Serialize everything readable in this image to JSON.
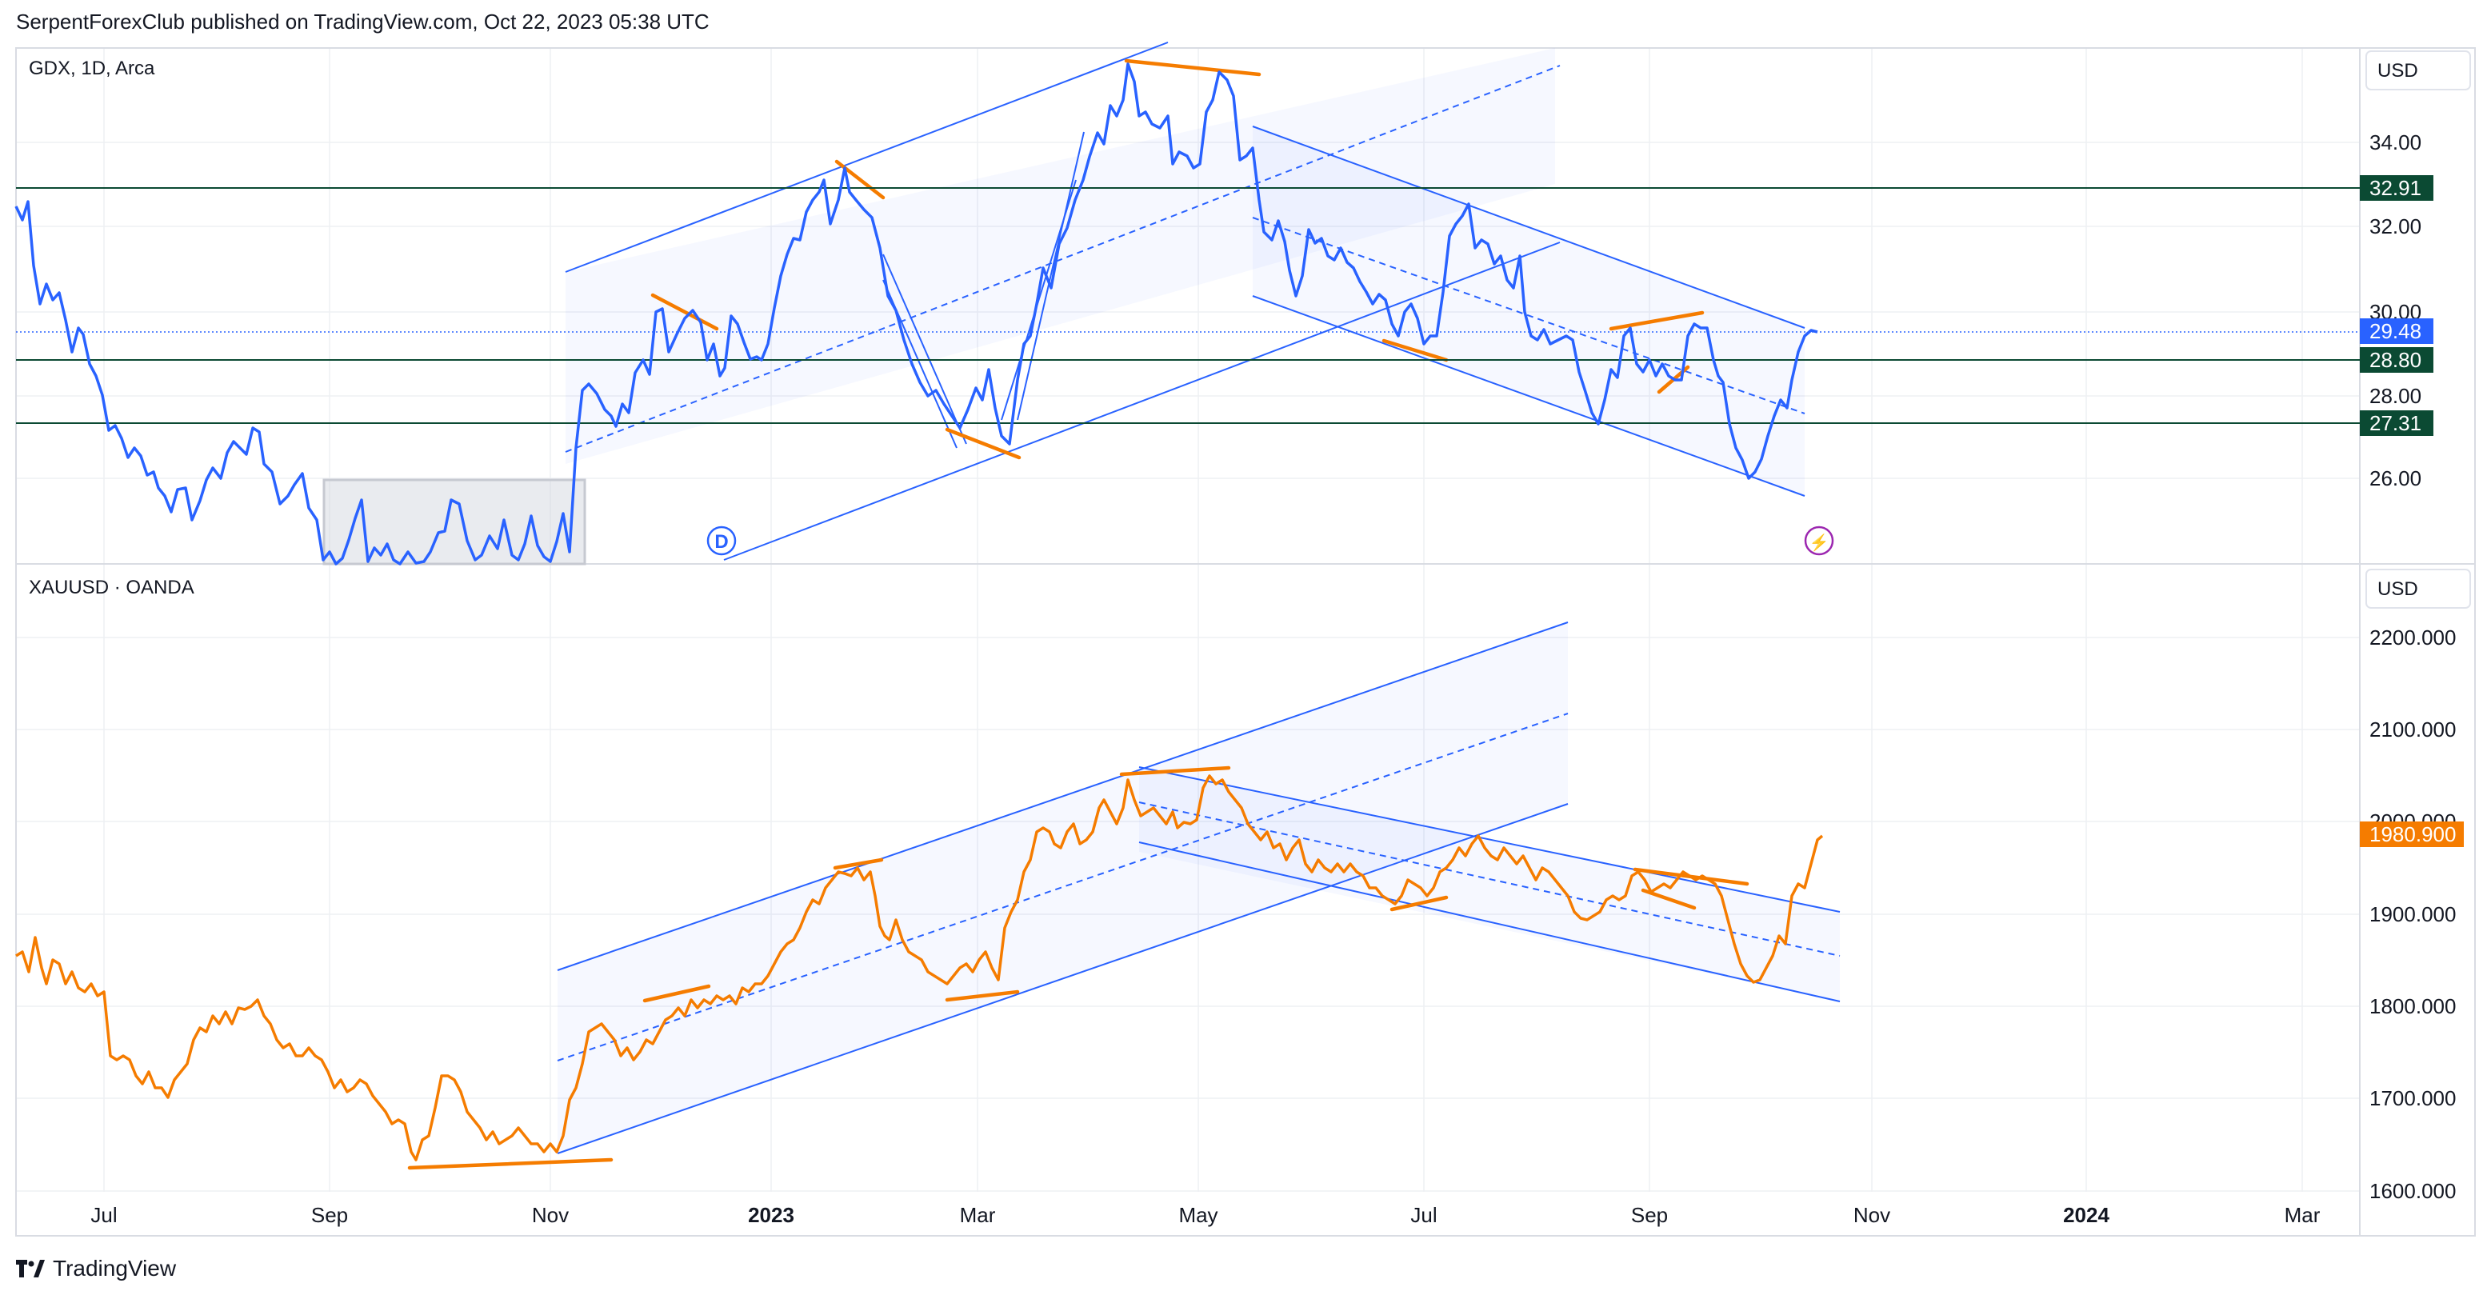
{
  "header": {
    "publisher_line": "SerpentForexClub published on TradingView.com, Oct 22, 2023 05:38 UTC"
  },
  "brand": {
    "name": "TradingView"
  },
  "panes": {
    "top": {
      "symbol": "GDX, 1D, Arca",
      "currency": "USD",
      "y_ticks": [
        "34.00",
        "32.00",
        "30.00",
        "28.00",
        "26.00"
      ],
      "levels": [
        "32.91",
        "29.48",
        "28.80",
        "27.31"
      ],
      "level_colors": [
        "#0b4a33",
        "#2962ff",
        "#0b4a33",
        "#0b4a33"
      ],
      "events": {
        "dividend": "D",
        "flash": "⚡"
      }
    },
    "bottom": {
      "symbol": "XAUUSD · OANDA",
      "currency": "USD",
      "y_ticks": [
        "2200.000",
        "2100.000",
        "2000.000",
        "1900.000",
        "1800.000",
        "1700.000",
        "1600.000"
      ],
      "last_price": "1980.900",
      "last_price_color": "#f57c00"
    }
  },
  "time_axis": [
    {
      "label": "Jul",
      "bold": false
    },
    {
      "label": "Sep",
      "bold": false
    },
    {
      "label": "Nov",
      "bold": false
    },
    {
      "label": "2023",
      "bold": true
    },
    {
      "label": "Mar",
      "bold": false
    },
    {
      "label": "May",
      "bold": false
    },
    {
      "label": "Jul",
      "bold": false
    },
    {
      "label": "Sep",
      "bold": false
    },
    {
      "label": "Nov",
      "bold": false
    },
    {
      "label": "2024",
      "bold": true
    },
    {
      "label": "Mar",
      "bold": false
    }
  ],
  "colors": {
    "gdx_line": "#2962ff",
    "gold_line": "#f57c00",
    "channel": "#2962ff",
    "drawings": "#f57c00",
    "level_line": "#0b4a33"
  },
  "chart_data": [
    {
      "type": "line",
      "title": "GDX, 1D, Arca",
      "ylim": [
        24.6,
        37.0
      ],
      "x": [
        "2022-06-10",
        "2022-06-20",
        "2022-07-01",
        "2022-07-10",
        "2022-07-20",
        "2022-08-01",
        "2022-08-10",
        "2022-08-20",
        "2022-09-01",
        "2022-09-10",
        "2022-09-20",
        "2022-10-01",
        "2022-10-10",
        "2022-10-20",
        "2022-11-01",
        "2022-11-10",
        "2022-11-20",
        "2022-12-01",
        "2022-12-10",
        "2022-12-20",
        "2023-01-01",
        "2023-01-10",
        "2023-01-20",
        "2023-02-01",
        "2023-02-10",
        "2023-02-20",
        "2023-03-01",
        "2023-03-10",
        "2023-03-20",
        "2023-04-01",
        "2023-04-10",
        "2023-04-20",
        "2023-05-01",
        "2023-05-10",
        "2023-05-20",
        "2023-06-01",
        "2023-06-10",
        "2023-06-20",
        "2023-07-01",
        "2023-07-10",
        "2023-07-20",
        "2023-08-01",
        "2023-08-10",
        "2023-08-20",
        "2023-09-01",
        "2023-09-10",
        "2023-09-20",
        "2023-10-01",
        "2023-10-10",
        "2023-10-20"
      ],
      "values": [
        32.6,
        30.8,
        27.2,
        26.1,
        26.8,
        27.2,
        26.3,
        25.2,
        24.8,
        25.4,
        24.6,
        25.1,
        25.6,
        24.7,
        24.9,
        28.2,
        27.8,
        29.6,
        29.2,
        28.6,
        29.1,
        31.9,
        33.2,
        31.0,
        29.2,
        27.0,
        26.6,
        31.0,
        32.6,
        34.2,
        35.8,
        34.2,
        34.8,
        32.2,
        30.6,
        31.1,
        30.5,
        29.2,
        31.9,
        32.0,
        30.8,
        29.4,
        28.0,
        29.4,
        28.9,
        30.0,
        28.4,
        25.9,
        28.1,
        29.6
      ],
      "series": [
        {
          "name": "GDX, 1D, Arca",
          "color": "#2962ff"
        }
      ]
    },
    {
      "type": "line",
      "title": "XAUUSD · OANDA",
      "ylim": [
        1585,
        2230
      ],
      "x": [
        "2022-06-10",
        "2022-06-20",
        "2022-07-01",
        "2022-07-10",
        "2022-07-20",
        "2022-08-01",
        "2022-08-10",
        "2022-08-20",
        "2022-09-01",
        "2022-09-10",
        "2022-09-20",
        "2022-10-01",
        "2022-10-10",
        "2022-10-20",
        "2022-11-01",
        "2022-11-10",
        "2022-11-20",
        "2022-12-01",
        "2022-12-10",
        "2022-12-20",
        "2023-01-01",
        "2023-01-10",
        "2023-01-20",
        "2023-02-01",
        "2023-02-10",
        "2023-02-20",
        "2023-03-01",
        "2023-03-10",
        "2023-03-20",
        "2023-04-01",
        "2023-04-10",
        "2023-04-20",
        "2023-05-01",
        "2023-05-10",
        "2023-05-20",
        "2023-06-01",
        "2023-06-10",
        "2023-06-20",
        "2023-07-01",
        "2023-07-10",
        "2023-07-20",
        "2023-08-01",
        "2023-08-10",
        "2023-08-20",
        "2023-09-01",
        "2023-09-10",
        "2023-09-20",
        "2023-10-01",
        "2023-10-10",
        "2023-10-20"
      ],
      "values": [
        1850,
        1840,
        1760,
        1705,
        1720,
        1775,
        1790,
        1760,
        1710,
        1700,
        1650,
        1660,
        1675,
        1640,
        1650,
        1755,
        1745,
        1800,
        1790,
        1800,
        1830,
        1880,
        1930,
        1870,
        1840,
        1820,
        1820,
        1920,
        1960,
        1980,
        2025,
        1990,
        2040,
        2010,
        1960,
        1960,
        1950,
        1920,
        1915,
        1930,
        1960,
        1950,
        1915,
        1890,
        1940,
        1935,
        1920,
        1825,
        1870,
        1980.9
      ],
      "series": [
        {
          "name": "XAUUSD · OANDA",
          "color": "#f57c00"
        }
      ]
    }
  ]
}
